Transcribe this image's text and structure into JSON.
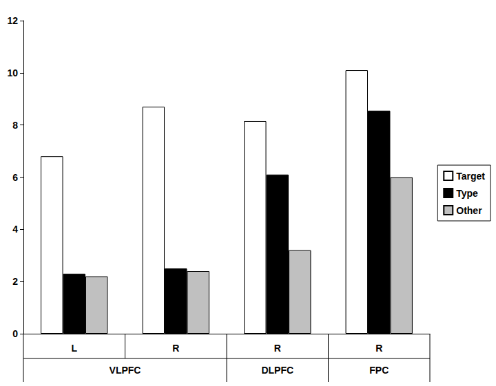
{
  "chart_data": {
    "type": "bar",
    "categories": [
      "L",
      "R",
      "R",
      "R"
    ],
    "category_groups": [
      "VLPFC",
      "VLPFC",
      "DLPFC",
      "FPC"
    ],
    "series": [
      {
        "name": "Target",
        "color": "#ffffff",
        "values": [
          6.8,
          8.7,
          8.15,
          10.1
        ]
      },
      {
        "name": "Type",
        "color": "#000000",
        "values": [
          2.3,
          2.5,
          6.1,
          8.55
        ]
      },
      {
        "name": "Other",
        "color": "#c0c0c0",
        "values": [
          2.2,
          2.4,
          3.2,
          6.0
        ]
      }
    ],
    "ylim": [
      0,
      12
    ],
    "yticks": [
      0,
      2,
      4,
      6,
      8,
      10,
      12
    ],
    "grid": false,
    "legend": "right"
  }
}
